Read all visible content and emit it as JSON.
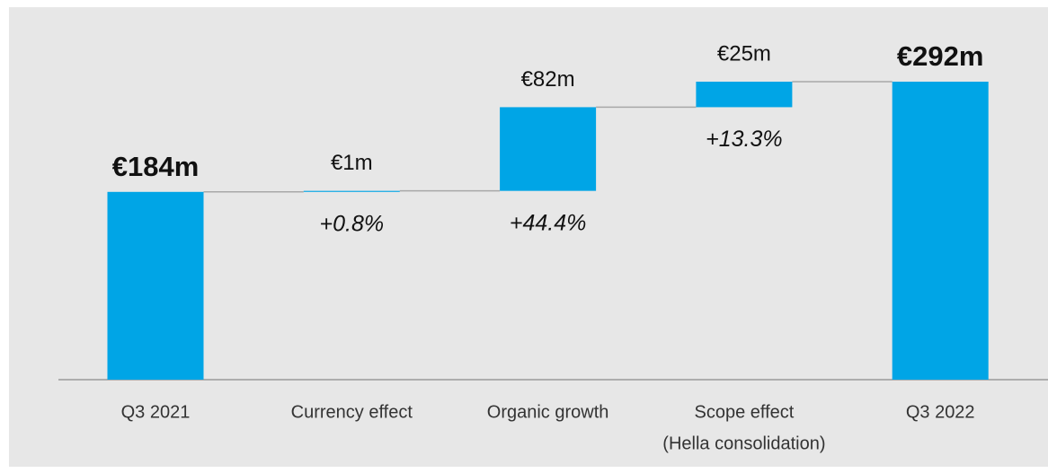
{
  "chart_data": {
    "type": "waterfall",
    "categories": [
      "Q3 2021",
      "Currency effect",
      "Organic growth",
      "Scope effect",
      "Q3 2022"
    ],
    "category_notes": [
      null,
      null,
      null,
      "(Hella consolidation)",
      null
    ],
    "measures": [
      "total",
      "relative",
      "relative",
      "relative",
      "total"
    ],
    "values": [
      184,
      1,
      82,
      25,
      292
    ],
    "value_labels": [
      "€184m",
      "€1m",
      "€82m",
      "€25m",
      "€292m"
    ],
    "growth_labels": [
      null,
      "+0.8%",
      "+44.4%",
      "+13.3%",
      null
    ],
    "color": "#00a5e6"
  }
}
